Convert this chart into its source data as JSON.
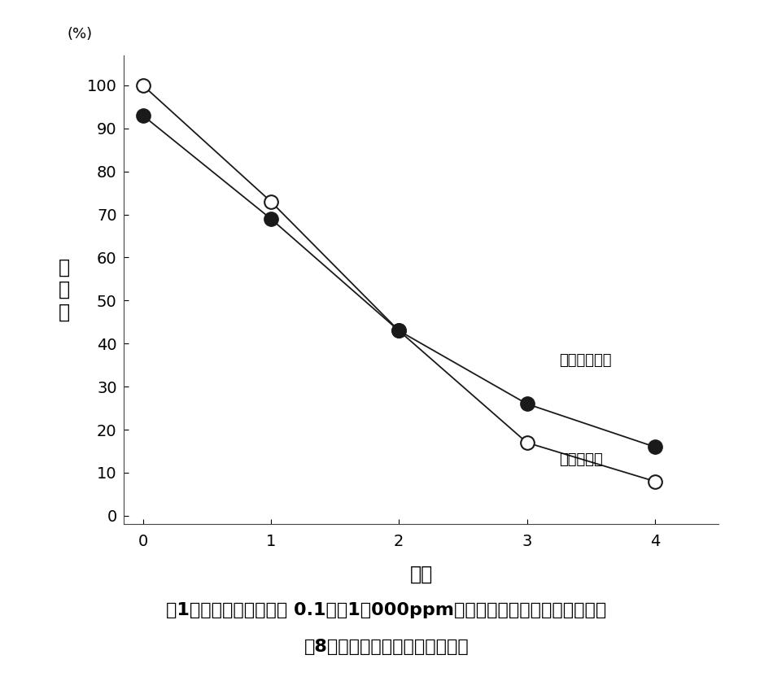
{
  "x": [
    0,
    1,
    2,
    3,
    4
  ],
  "pet_bottle": [
    93,
    69,
    43,
    26,
    16
  ],
  "glass": [
    100,
    73,
    43,
    17,
    8
  ],
  "pet_label": "ペットボトル",
  "glass_label": "ガラス容器",
  "ylabel": "残\n存\n率",
  "xlabel": "時間",
  "yunit": "(%)",
  "yticks": [
    0,
    10,
    20,
    30,
    40,
    50,
    60,
    70,
    80,
    90,
    100
  ],
  "xticks": [
    0,
    1,
    2,
    3,
    4
  ],
  "ylim": [
    -2,
    107
  ],
  "xlim": [
    -0.15,
    4.5
  ],
  "figure1_line1": "図1．　直射日光下での 0.1％（1，000ppm）次亜塗素ナトリウムの安定性",
  "figure1_line2": "（8月に山口県下で回答者測定）",
  "background_color": "#ffffff",
  "line_color": "#1a1a1a",
  "pet_marker_color": "#1a1a1a",
  "glass_marker_color": "#ffffff",
  "glass_marker_edge": "#1a1a1a"
}
